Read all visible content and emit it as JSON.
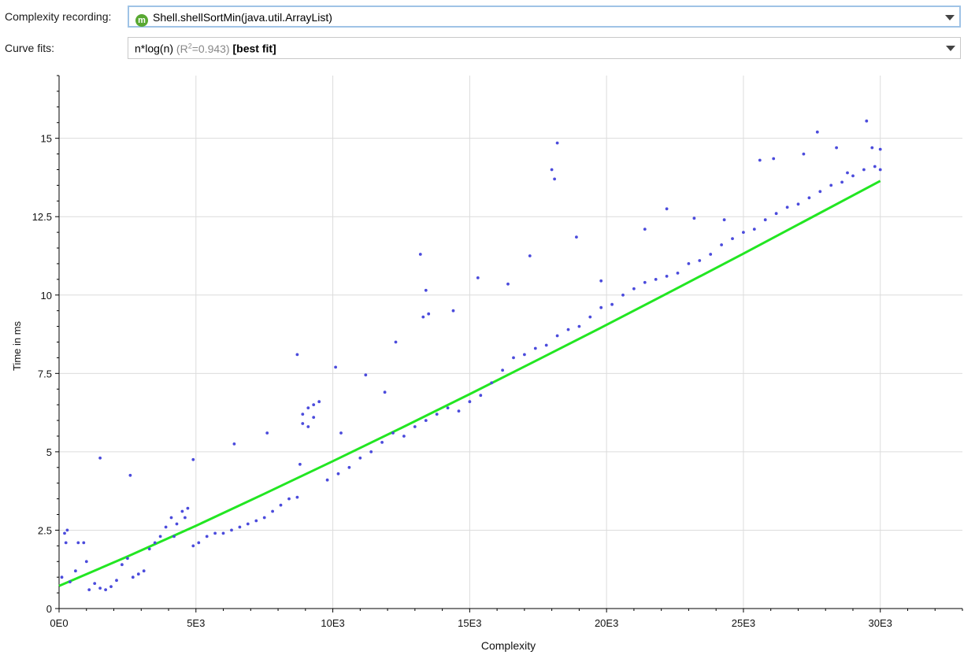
{
  "controls": {
    "recording_label": "Complexity recording:",
    "recording_icon": "method-icon",
    "recording_icon_letter": "m",
    "recording_value": "Shell.shellSortMin(java.util.ArrayList)",
    "fits_label": "Curve fits:",
    "fit_name": "n*log(n)",
    "fit_r2_prefix": "(R",
    "fit_r2_sup": "2",
    "fit_r2_suffix": "=0.943)",
    "fit_best": "[best fit]"
  },
  "colors": {
    "points": "#4b4bdc",
    "fit": "#22e622",
    "grid": "#dcdcdc"
  },
  "chart_data": {
    "type": "scatter",
    "xlabel": "Complexity",
    "ylabel": "Time in ms",
    "xlim": [
      0,
      33000
    ],
    "ylim": [
      0,
      17
    ],
    "xticks": [
      0,
      5000,
      10000,
      15000,
      20000,
      25000,
      30000
    ],
    "xtick_labels": [
      "0E0",
      "5E3",
      "10E3",
      "15E3",
      "20E3",
      "25E3",
      "30E3"
    ],
    "yticks": [
      0,
      2.5,
      5,
      7.5,
      10,
      12.5,
      15
    ],
    "ytick_labels": [
      "0",
      "2.5",
      "5",
      "7.5",
      "10",
      "12.5",
      "15"
    ],
    "grid": true,
    "series": [
      {
        "kind": "points",
        "x": [
          100,
          250,
          400,
          600,
          900,
          1100,
          1300,
          1500,
          1700,
          1900,
          2100,
          2300,
          2500,
          2700,
          2900,
          3100,
          3300,
          3500,
          3700,
          3900,
          4100,
          4300,
          4500,
          4700,
          4900,
          5100,
          5400,
          5700,
          6000,
          6300,
          6600,
          6900,
          7200,
          7500,
          7800,
          8100,
          8400,
          8700,
          8900,
          9100,
          9300,
          9500,
          9800,
          10200,
          10600,
          11000,
          11400,
          11800,
          12200,
          12600,
          13000,
          13400,
          13800,
          14200,
          14600,
          15000,
          15400,
          15800,
          16200,
          16600,
          17000,
          17400,
          17800,
          18200,
          18600,
          19000,
          19400,
          19800,
          20200,
          20600,
          21000,
          21400,
          21800,
          22200,
          22600,
          23000,
          23400,
          23800,
          24200,
          24600,
          25000,
          25400,
          25800,
          26200,
          26600,
          27000,
          27400,
          27800,
          28200,
          28600,
          29000,
          29400,
          29800,
          30000,
          300,
          700,
          1000,
          200,
          1500,
          2600,
          4900,
          6400,
          7600,
          8700,
          10100,
          10300,
          11200,
          11900,
          12300,
          13200,
          13400,
          13500,
          14400,
          15300,
          16400,
          17200,
          18000,
          18200,
          18900,
          19800,
          21400,
          22200,
          23200,
          24300,
          25600,
          27200,
          27700,
          28400,
          29500,
          30000,
          9100,
          9300,
          4200,
          4600,
          26100,
          28800,
          29700,
          8900,
          13300,
          18100,
          8800
        ],
        "y": [
          1.0,
          2.1,
          0.85,
          1.2,
          2.1,
          0.6,
          0.8,
          0.65,
          0.6,
          0.7,
          0.9,
          1.4,
          1.6,
          1.0,
          1.1,
          1.2,
          1.9,
          2.1,
          2.3,
          2.6,
          2.9,
          2.7,
          3.1,
          3.2,
          2.0,
          2.1,
          2.3,
          2.4,
          2.4,
          2.5,
          2.6,
          2.7,
          2.8,
          2.9,
          3.1,
          3.3,
          3.5,
          3.55,
          6.2,
          6.4,
          6.5,
          6.6,
          4.1,
          4.3,
          4.5,
          4.8,
          5.0,
          5.3,
          5.6,
          5.5,
          5.8,
          6.0,
          6.2,
          6.4,
          6.3,
          6.6,
          6.8,
          7.2,
          7.6,
          8.0,
          8.1,
          8.3,
          8.4,
          8.7,
          8.9,
          9.0,
          9.3,
          9.6,
          9.7,
          10.0,
          10.2,
          10.4,
          10.5,
          10.6,
          10.7,
          11.0,
          11.1,
          11.3,
          11.6,
          11.8,
          12.0,
          12.1,
          12.4,
          12.6,
          12.8,
          12.9,
          13.1,
          13.3,
          13.5,
          13.6,
          13.8,
          14.0,
          14.1,
          14.0,
          2.5,
          2.1,
          1.5,
          2.4,
          4.8,
          4.25,
          4.75,
          5.25,
          5.6,
          8.1,
          7.7,
          5.6,
          7.45,
          6.9,
          8.5,
          11.3,
          10.15,
          9.4,
          9.5,
          10.55,
          10.35,
          11.25,
          14.0,
          14.85,
          11.85,
          10.45,
          12.1,
          12.75,
          12.45,
          12.4,
          14.3,
          14.5,
          15.2,
          14.7,
          15.55,
          14.65,
          5.8,
          6.1,
          2.3,
          2.9,
          14.35,
          13.9,
          14.7,
          5.9,
          9.3,
          13.7,
          4.6
        ]
      },
      {
        "kind": "fit",
        "name": "n*log(n)",
        "x": [
          0,
          2500,
          5000,
          7500,
          10000,
          12500,
          15000,
          17500,
          20000,
          22500,
          25000,
          27500,
          30000
        ],
        "y": [
          0.72,
          1.66,
          2.64,
          3.66,
          4.7,
          5.76,
          6.84,
          7.94,
          9.05,
          10.18,
          11.32,
          12.48,
          13.64
        ]
      }
    ]
  }
}
